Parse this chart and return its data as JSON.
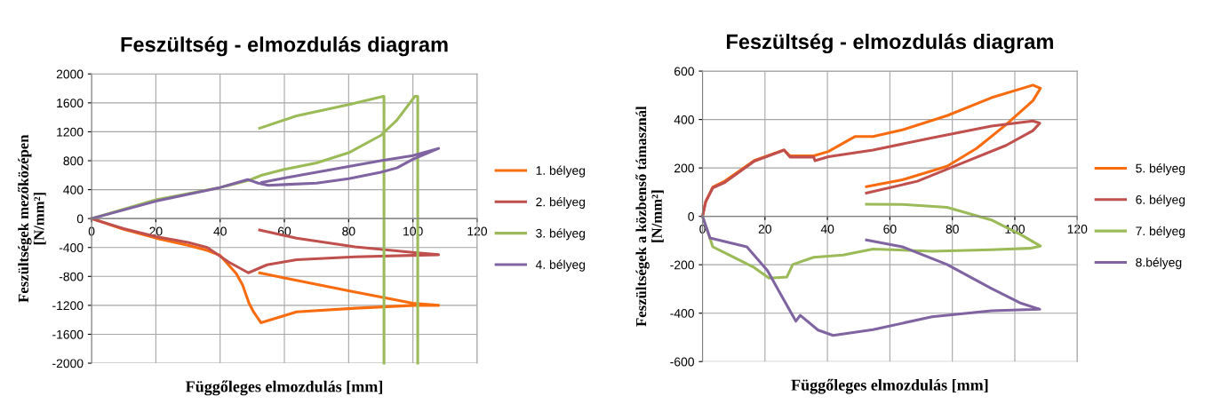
{
  "chart_data": [
    {
      "type": "line",
      "title": "Feszültség - elmozdulás diagram",
      "xlabel": "Függőleges elmozdulás [mm]",
      "ylabel": "Feszültségek mezőközépen\n[N/mm²]",
      "xlim": [
        0,
        120
      ],
      "ylim": [
        -2000,
        2000
      ],
      "xticks": [
        0,
        20,
        40,
        60,
        80,
        100,
        120
      ],
      "yticks": [
        -2000,
        -1600,
        -1200,
        -800,
        -400,
        0,
        400,
        800,
        1200,
        1600,
        2000
      ],
      "grid": true,
      "legend": "right",
      "series": [
        {
          "name": "1. bélyeg",
          "color": "#f96b0f",
          "x": [
            0,
            10,
            20,
            30,
            36,
            40,
            45,
            47,
            49,
            50.4,
            52.7,
            63.8,
            82,
            100.6,
            108,
            100,
            80,
            60,
            52.3
          ],
          "values": [
            0,
            -150,
            -270,
            -370,
            -440,
            -510,
            -760,
            -920,
            -1170,
            -1290,
            -1440,
            -1290,
            -1240,
            -1200,
            -1200,
            -1170,
            -1000,
            -820,
            -750
          ]
        },
        {
          "name": "2. bélyeg",
          "color": "#c0504d",
          "x": [
            0,
            10,
            20,
            30,
            36,
            40,
            42.6,
            48.8,
            54.6,
            63.8,
            82,
            108,
            100.6,
            82,
            63.8,
            52.3
          ],
          "values": [
            0,
            -140,
            -250,
            -330,
            -400,
            -520,
            -600,
            -750,
            -640,
            -570,
            -530,
            -500,
            -470,
            -390,
            -270,
            -160
          ]
        },
        {
          "name": "3. bélyeg",
          "color": "#9bbb59",
          "x": [
            0,
            20,
            40,
            49,
            53,
            60,
            70,
            80,
            90,
            95,
            100.6,
            101.5,
            101.5,
            null,
            52.3,
            63.8,
            80.4,
            90.8,
            91,
            91
          ],
          "values": [
            0,
            260,
            430,
            530,
            600,
            680,
            770,
            910,
            1150,
            1360,
            1690,
            1690,
            -2000,
            null,
            1250,
            1420,
            1580,
            1690,
            1690,
            -2000
          ]
        },
        {
          "name": "4. bélyeg",
          "color": "#8064a2",
          "x": [
            0,
            20,
            40,
            48.6,
            51.8,
            55,
            60,
            70,
            80,
            90,
            95,
            100,
            108,
            104,
            100,
            90,
            80,
            70,
            60,
            53
          ],
          "values": [
            0,
            240,
            430,
            540,
            490,
            460,
            470,
            490,
            550,
            640,
            700,
            820,
            970,
            920,
            870,
            800,
            720,
            640,
            560,
            500
          ]
        }
      ]
    },
    {
      "type": "line",
      "title": "Feszültség - elmozdulás diagram",
      "xlabel": "Függőleges elmozdulás [mm]",
      "ylabel": "Feszültségek a közbenső támasznál\n[N/mm²]",
      "xlim": [
        0,
        120
      ],
      "ylim": [
        -600,
        600
      ],
      "xticks": [
        0,
        20,
        40,
        60,
        80,
        100,
        120
      ],
      "yticks": [
        -600,
        -400,
        -200,
        0,
        200,
        400,
        600
      ],
      "grid": true,
      "legend": "right",
      "series": [
        {
          "name": "5. bélyeg",
          "color": "#f96b0f",
          "x": [
            0,
            1,
            3.3,
            7.1,
            16.6,
            26.1,
            28,
            35.6,
            40.3,
            48.9,
            54.6,
            64,
            78.3,
            92.5,
            105.8,
            108.2,
            105.8,
            97.2,
            87.8,
            78.3,
            64,
            52.5
          ],
          "values": [
            0,
            60,
            121,
            145,
            231,
            274,
            250,
            250,
            268,
            330,
            330,
            357,
            416,
            490,
            542,
            529,
            478,
            379,
            281,
            207,
            151,
            123
          ]
        },
        {
          "name": "6. bélyeg",
          "color": "#c0504d",
          "x": [
            0,
            1,
            3.3,
            7.1,
            16.6,
            26.1,
            28,
            35.6,
            36,
            40.3,
            54.6,
            73.5,
            92.5,
            105.8,
            108,
            105.8,
            97.2,
            83,
            68.8,
            52.5
          ],
          "values": [
            0,
            60,
            118,
            140,
            228,
            274,
            245,
            245,
            230,
            246,
            274,
            324,
            373,
            394,
            385,
            354,
            293,
            219,
            145,
            96
          ]
        },
        {
          "name": "7. bélyeg",
          "color": "#9bbb59",
          "x": [
            0,
            3.3,
            7.1,
            16.6,
            21.3,
            27,
            28.9,
            35.6,
            45,
            54.6,
            73.5,
            92.5,
            104.8,
            108.2,
            102,
            92.5,
            78.3,
            64,
            52.5
          ],
          "values": [
            0,
            -126,
            -150,
            -212,
            -255,
            -251,
            -199,
            -169,
            -160,
            -135,
            -144,
            -138,
            -132,
            -123,
            -76,
            -15,
            37,
            49,
            50
          ]
        },
        {
          "name": "8.bélyeg",
          "color": "#8064a2",
          "x": [
            0,
            2.4,
            14.2,
            20.8,
            25.6,
            29.9,
            31.3,
            37,
            41.8,
            54.6,
            73.5,
            92.5,
            108,
            102,
            92.5,
            78.3,
            64,
            52.5
          ],
          "values": [
            0,
            -89,
            -126,
            -224,
            -335,
            -433,
            -409,
            -470,
            -492,
            -468,
            -415,
            -390,
            -384,
            -359,
            -298,
            -199,
            -126,
            -98
          ]
        }
      ]
    }
  ]
}
